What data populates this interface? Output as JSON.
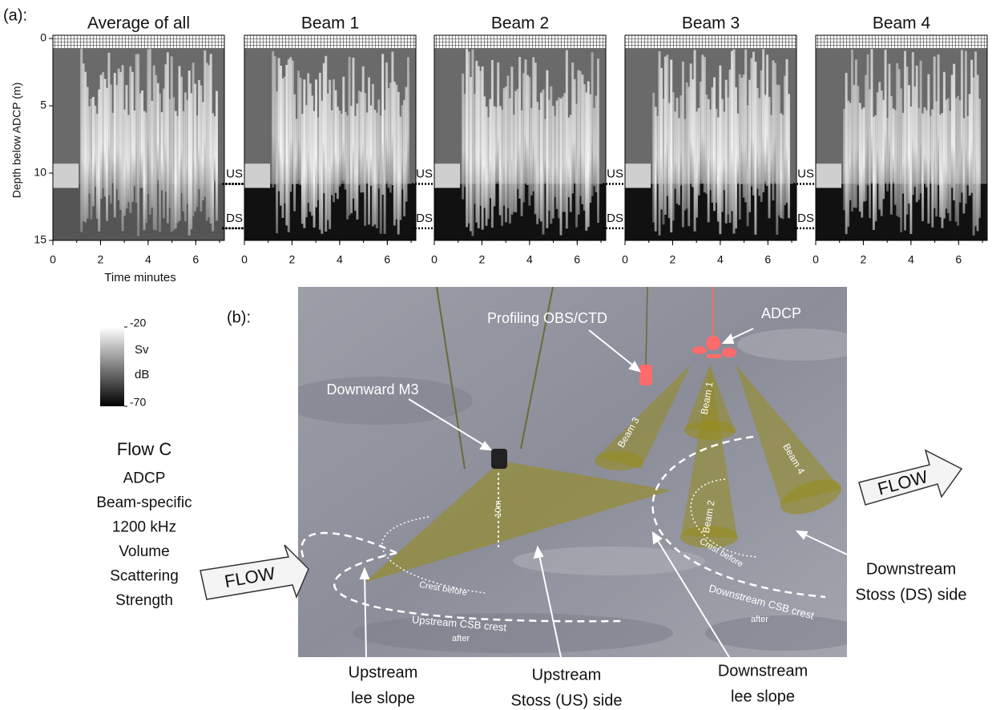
{
  "panel_a": {
    "label": "(a):",
    "y_label": "Depth below ADCP (m)",
    "x_label": "Time minutes",
    "ylim": [
      0,
      15
    ],
    "yticks": [
      0,
      5,
      10,
      15
    ],
    "xlim": [
      0,
      7.2
    ],
    "xticks": [
      0,
      2,
      4,
      6
    ],
    "panels": [
      "Average of all",
      "Beam 1",
      "Beam 2",
      "Beam 3",
      "Beam 4"
    ],
    "markers": [
      {
        "label": "US",
        "depth": 10.8
      },
      {
        "label": "DS",
        "depth": 14.1
      }
    ]
  },
  "colorbar": {
    "clim": [
      -70,
      -20
    ],
    "ticks": [
      -20,
      -70
    ],
    "unit_top": "Sv",
    "unit_bottom": "dB"
  },
  "caption": {
    "lines": [
      "Flow C",
      "ADCP",
      "Beam-specific",
      "1200 kHz",
      "Volume",
      "Scattering",
      "Strength"
    ]
  },
  "panel_b": {
    "label": "(b):",
    "profiler": "Profiling OBS/CTD",
    "adcp": "ADCP",
    "m3": "Downward M3",
    "beams": [
      "Beam 1",
      "Beam 2",
      "Beam 3",
      "Beam 4"
    ],
    "range": "10m",
    "flow": "FLOW",
    "crest_before": "Crest before",
    "upstream_crest": "Upstream CSB crest",
    "downstream_crest": "Downstream CSB crest",
    "after": "after",
    "upstream_lee": [
      "Upstream",
      "lee slope"
    ],
    "upstream_stoss": [
      "Upstream",
      "Stoss (US) side"
    ],
    "downstream_lee": [
      "Downstream",
      "lee slope"
    ],
    "downstream_stoss": [
      "Downstream",
      "Stoss (DS) side"
    ]
  }
}
